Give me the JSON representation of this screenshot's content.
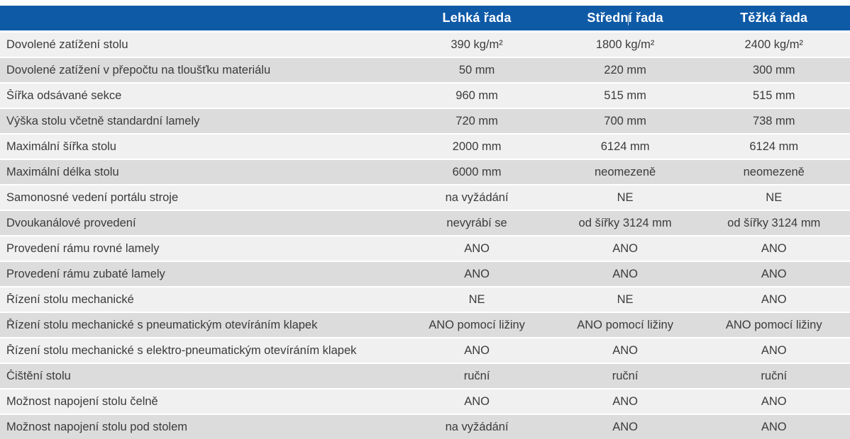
{
  "table": {
    "columns": [
      "",
      "Lehká řada",
      "Střední řada",
      "Těžká řada"
    ],
    "rows": [
      {
        "label": "Dovolené zatížení stolu",
        "values": [
          "390 kg/m²",
          "1800 kg/m²",
          "2400 kg/m²"
        ]
      },
      {
        "label": "Dovolené zatížení v přepočtu na tloušťku materiálu",
        "values": [
          "50 mm",
          "220 mm",
          "300 mm"
        ]
      },
      {
        "label": "Šířka odsávané sekce",
        "values": [
          "960 mm",
          "515 mm",
          "515 mm"
        ]
      },
      {
        "label": "Výška stolu včetně standardní lamely",
        "values": [
          "720 mm",
          "700 mm",
          "738 mm"
        ]
      },
      {
        "label": "Maximální šířka stolu",
        "values": [
          "2000 mm",
          "6124 mm",
          "6124 mm"
        ]
      },
      {
        "label": "Maximální délka stolu",
        "values": [
          "6000 mm",
          "neomezeně",
          "neomezeně"
        ]
      },
      {
        "label": "Samonosné vedení portálu stroje",
        "values": [
          "na vyžádání",
          "NE",
          "NE"
        ]
      },
      {
        "label": "Dvoukanálové provedení",
        "values": [
          "nevyrábí se",
          "od šířky 3124 mm",
          "od šířky 3124 mm"
        ]
      },
      {
        "label": "Provedení rámu rovné lamely",
        "values": [
          "ANO",
          "ANO",
          "ANO"
        ]
      },
      {
        "label": "Provedení rámu zubaté lamely",
        "values": [
          "ANO",
          "ANO",
          "ANO"
        ]
      },
      {
        "label": "Řízení stolu mechanické",
        "values": [
          "NE",
          "NE",
          "ANO"
        ]
      },
      {
        "label": "Řízení stolu mechanické s pneumatickým otevíráním klapek",
        "values": [
          "ANO pomocí ližiny",
          "ANO pomocí ližiny",
          "ANO pomocí ližiny"
        ]
      },
      {
        "label": "Řízení stolu mechanické s elektro-pneumatickým otevíráním klapek",
        "values": [
          "ANO",
          "ANO",
          "ANO"
        ]
      },
      {
        "label": "Čištění stolu",
        "values": [
          "ruční",
          "ruční",
          "ruční"
        ]
      },
      {
        "label": "Možnost napojení stolu čelně",
        "values": [
          "ANO",
          "ANO",
          "ANO"
        ]
      },
      {
        "label": "Možnost napojení stolu pod stolem",
        "values": [
          "na vyžádání",
          "ANO",
          "ANO"
        ]
      }
    ]
  },
  "colors": {
    "header_bg": "#0e5aa7",
    "header_text": "#ffffff",
    "row_light": "#f0f0f1",
    "row_dark": "#dcdcdd",
    "body_text": "#3b3b3b"
  }
}
